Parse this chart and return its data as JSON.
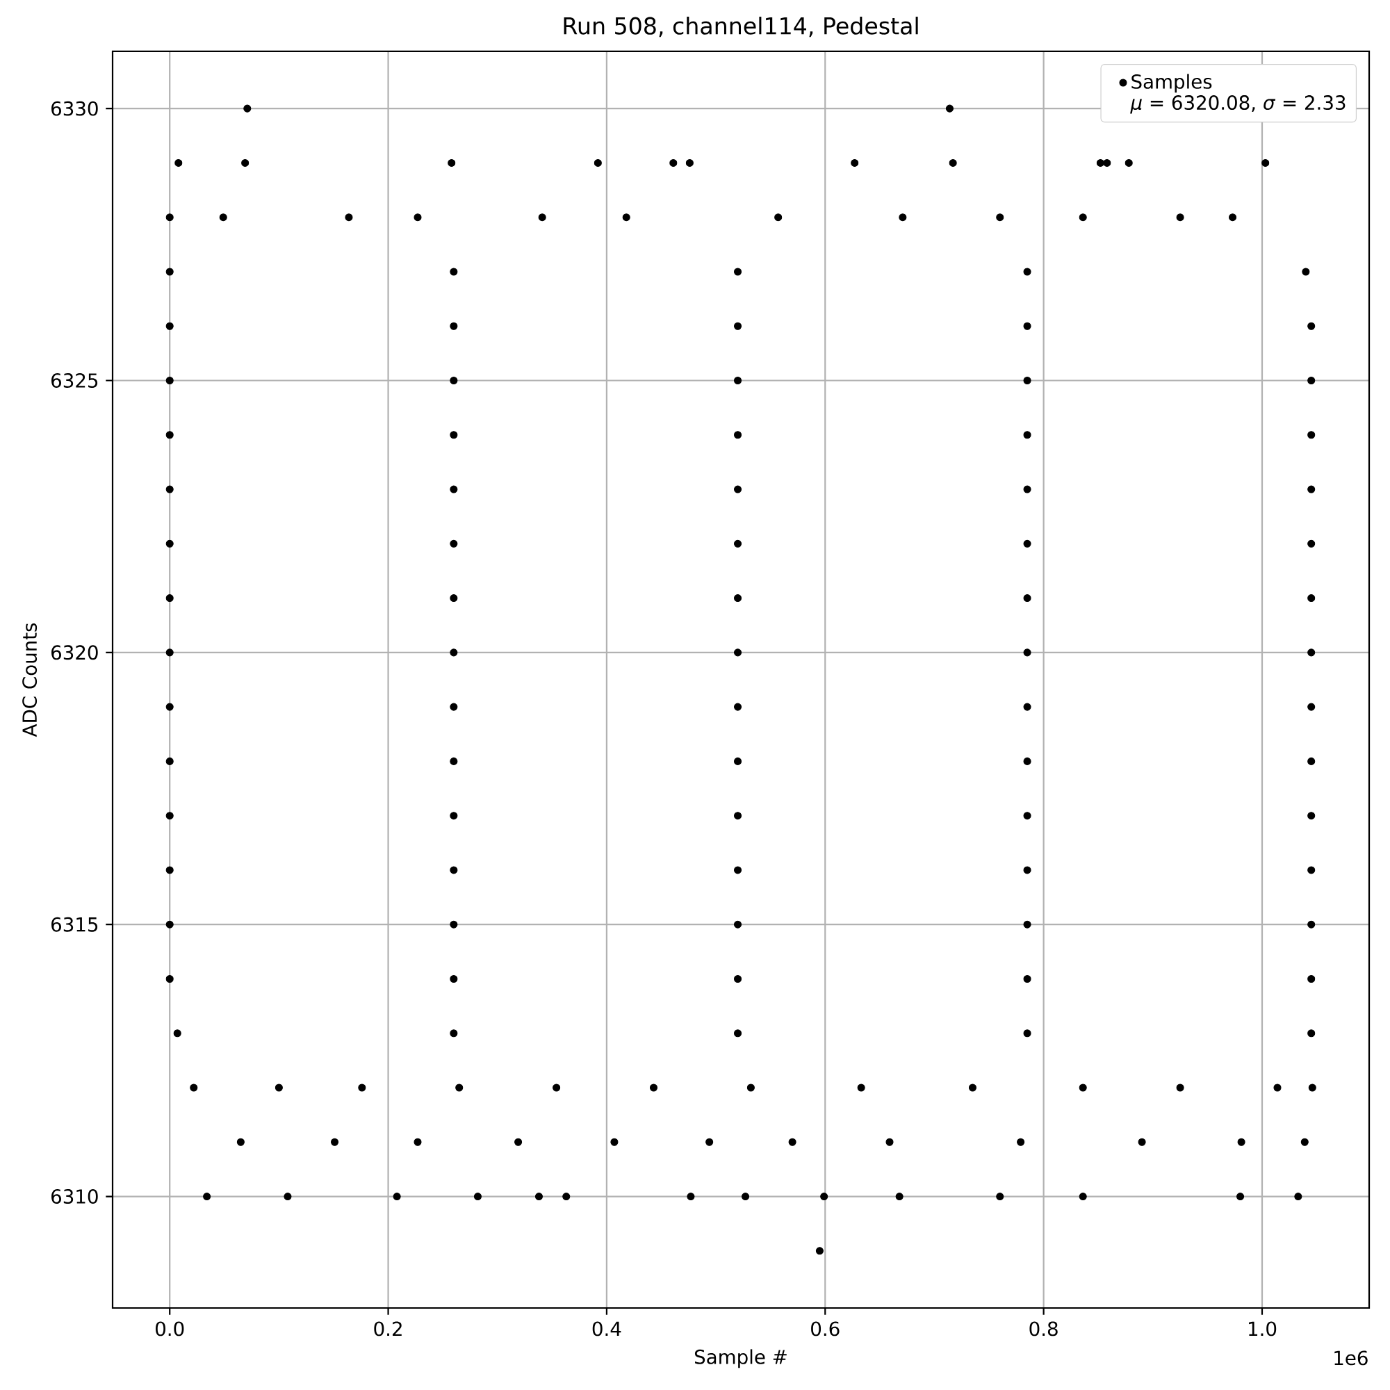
{
  "chart_data": {
    "type": "scatter",
    "title": "Run 508, channel114, Pedestal",
    "xlabel": "Sample #",
    "ylabel": "ADC Counts",
    "annotations": [
      "1e6",
      "*μ* = 6320.08, *σ* = 2.33"
    ],
    "series": [
      {
        "name": "Samples",
        "color": "#000000",
        "x": [
          0.595,
          0.034,
          0.108,
          0.208,
          0.282,
          0.338,
          0.363,
          0.477,
          0.527,
          0.599,
          0.668,
          0.76,
          0.836,
          0.98,
          1.033,
          0.065,
          0.151,
          0.227,
          0.319,
          0.407,
          0.494,
          0.57,
          0.659,
          0.779,
          0.89,
          0.981,
          1.039,
          0.022,
          0.1,
          0.176,
          0.265,
          0.354,
          0.443,
          0.532,
          0.633,
          0.735,
          0.836,
          0.925,
          1.014,
          1.046,
          0.007,
          0.26,
          0.52,
          0.785,
          1.045,
          0,
          0.26,
          0.52,
          0.785,
          1.045,
          0,
          0.26,
          0.52,
          0.785,
          1.045,
          0,
          0.26,
          0.52,
          0.785,
          1.045,
          0,
          0.26,
          0.52,
          0.785,
          1.045,
          0,
          0.26,
          0.52,
          0.785,
          1.045,
          0,
          0.26,
          0.52,
          0.785,
          1.045,
          0,
          0.26,
          0.52,
          0.785,
          1.045,
          0,
          0.26,
          0.52,
          0.785,
          1.045,
          0,
          0.26,
          0.52,
          0.785,
          1.045,
          0,
          0.26,
          0.52,
          0.785,
          1.045,
          0,
          0.26,
          0.52,
          0.785,
          1.045,
          0,
          0.26,
          0.52,
          0.785,
          1.045,
          0,
          0.26,
          0.52,
          0.785,
          1.045,
          0,
          0.26,
          0.52,
          0.785,
          1.04,
          0,
          0.049,
          0.164,
          0.227,
          0.341,
          0.418,
          0.557,
          0.671,
          0.76,
          0.836,
          0.925,
          0.973,
          0.008,
          0.069,
          0.258,
          0.392,
          0.461,
          0.476,
          0.627,
          0.717,
          0.852,
          0.858,
          0.878,
          1.003,
          0.071,
          0.714
        ],
        "values": [
          6309,
          6310,
          6310,
          6310,
          6310,
          6310,
          6310,
          6310,
          6310,
          6310,
          6310,
          6310,
          6310,
          6310,
          6310,
          6311,
          6311,
          6311,
          6311,
          6311,
          6311,
          6311,
          6311,
          6311,
          6311,
          6311,
          6311,
          6312,
          6312,
          6312,
          6312,
          6312,
          6312,
          6312,
          6312,
          6312,
          6312,
          6312,
          6312,
          6312,
          6313,
          6313,
          6313,
          6313,
          6313,
          6314,
          6314,
          6314,
          6314,
          6314,
          6315,
          6315,
          6315,
          6315,
          6315,
          6316,
          6316,
          6316,
          6316,
          6316,
          6317,
          6317,
          6317,
          6317,
          6317,
          6318,
          6318,
          6318,
          6318,
          6318,
          6319,
          6319,
          6319,
          6319,
          6319,
          6320,
          6320,
          6320,
          6320,
          6320,
          6321,
          6321,
          6321,
          6321,
          6321,
          6322,
          6322,
          6322,
          6322,
          6322,
          6323,
          6323,
          6323,
          6323,
          6323,
          6324,
          6324,
          6324,
          6324,
          6324,
          6325,
          6325,
          6325,
          6325,
          6325,
          6326,
          6326,
          6326,
          6326,
          6326,
          6327,
          6327,
          6327,
          6327,
          6327,
          6328,
          6328,
          6328,
          6328,
          6328,
          6328,
          6328,
          6328,
          6328,
          6328,
          6328,
          6328,
          6329,
          6329,
          6329,
          6329,
          6329,
          6329,
          6329,
          6329,
          6329,
          6329,
          6329,
          6329,
          6330,
          6330
        ]
      }
    ],
    "xlim": [
      -0.0523,
      1.098
    ],
    "ylim": [
      6307.95,
      6331.05
    ],
    "xticks": [
      {
        "value": 0,
        "label": "0.0"
      },
      0.2,
      0.4,
      0.6,
      0.8,
      {
        "value": 1,
        "label": "1.0"
      }
    ],
    "yticks": [
      6310,
      6315,
      6320,
      6325,
      6330
    ],
    "grid": true,
    "legend": "top right",
    "marker": "circle"
  }
}
